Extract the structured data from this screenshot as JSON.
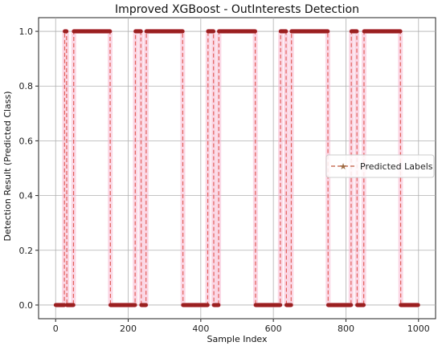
{
  "chart_data": {
    "type": "line",
    "title": "Improved XGBoost - OutInterests Detection",
    "xlabel": "Sample Index",
    "ylabel": "Detection Result (Predicted Class)",
    "xlim": [
      -47,
      1047
    ],
    "ylim": [
      -0.05,
      1.05
    ],
    "xticks": [
      0,
      200,
      400,
      600,
      800,
      1000
    ],
    "yticks": [
      0.0,
      0.2,
      0.4,
      0.6,
      0.8,
      1.0
    ],
    "grid": true,
    "legend_position": "center-right",
    "series": [
      {
        "name": "Predicted Labels",
        "line_style": "dashed",
        "marker": "star",
        "color": "#e0524a",
        "marker_color": "#9b2020",
        "highlight_color": "#f7b7cf",
        "segments_high": [
          [
            25,
            30
          ],
          [
            50,
            150
          ],
          [
            220,
            235
          ],
          [
            250,
            350
          ],
          [
            420,
            435
          ],
          [
            450,
            550
          ],
          [
            620,
            635
          ],
          [
            650,
            750
          ],
          [
            815,
            830
          ],
          [
            850,
            950
          ]
        ],
        "n_points": 1000,
        "x_range": [
          0,
          999
        ]
      }
    ]
  }
}
